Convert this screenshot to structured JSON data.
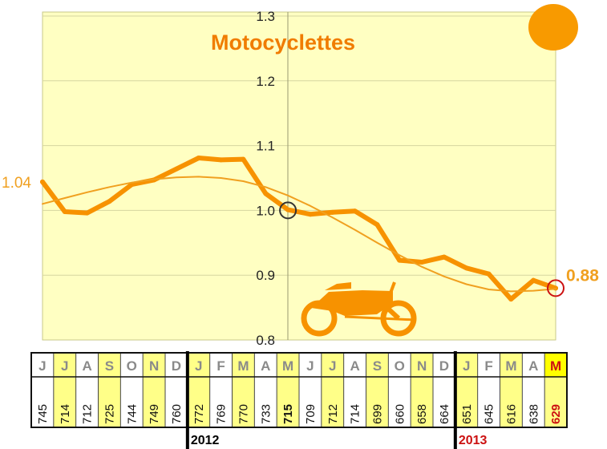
{
  "chart_data": {
    "type": "line",
    "title": "Motocyclettes",
    "ylim": [
      0.8,
      1.3
    ],
    "yticks": [
      "0.8",
      "0.9",
      "1.0",
      "1.1",
      "1.2",
      "1.3"
    ],
    "categories": [
      "J",
      "J",
      "A",
      "S",
      "O",
      "N",
      "D",
      "J",
      "F",
      "M",
      "A",
      "M",
      "J",
      "J",
      "A",
      "S",
      "O",
      "N",
      "D",
      "J",
      "F",
      "M",
      "A",
      "M"
    ],
    "series": [
      {
        "values": [
          1.044,
          0.998,
          0.996,
          1.014,
          1.04,
          1.047,
          1.064,
          1.081,
          1.078,
          1.079,
          1.026,
          1.001,
          0.994,
          0.997,
          0.999,
          0.978,
          0.923,
          0.92,
          0.928,
          0.911,
          0.902,
          0.863,
          0.892,
          0.88
        ],
        "color": "#f79200"
      },
      {
        "values": [
          1.01,
          1.019,
          1.028,
          1.036,
          1.043,
          1.048,
          1.051,
          1.052,
          1.05,
          1.045,
          1.036,
          1.023,
          1.007,
          0.989,
          0.97,
          0.95,
          0.931,
          0.913,
          0.898,
          0.886,
          0.878,
          0.875,
          0.876,
          0.879
        ],
        "color": "#f0a020"
      }
    ],
    "start_label": "1.04",
    "end_label": "0.88",
    "reference_marker_month_index": 11,
    "end_marker_month_index": 23
  },
  "table": {
    "months": [
      "J",
      "J",
      "A",
      "S",
      "O",
      "N",
      "D",
      "J",
      "F",
      "M",
      "A",
      "M",
      "J",
      "J",
      "A",
      "S",
      "O",
      "N",
      "D",
      "J",
      "F",
      "M",
      "A",
      "M"
    ],
    "counts": [
      "745",
      "714",
      "712",
      "725",
      "744",
      "749",
      "760",
      "772",
      "769",
      "770",
      "733",
      "715",
      "709",
      "712",
      "714",
      "699",
      "660",
      "658",
      "664",
      "651",
      "645",
      "616",
      "638",
      "629"
    ],
    "years": [
      "2012",
      "2013"
    ]
  },
  "colors": {
    "plot_bg": "#ffffc2",
    "grid": "#d6d6a0",
    "accent": "#f79200",
    "title": "#f07c00",
    "red": "#cc1111",
    "cell_highlight": "#ffff88",
    "highlight_month_bg": "#ffff00"
  },
  "icons": [
    "sun-icon",
    "motorcycle-icon"
  ]
}
